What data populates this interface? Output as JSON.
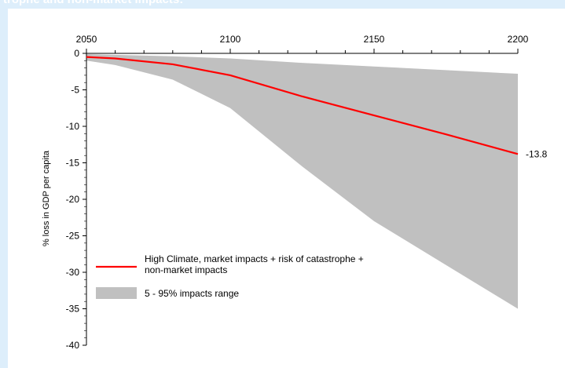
{
  "header": {
    "title": "trophe and non-market impacts:"
  },
  "chart_data": {
    "type": "area",
    "xlabel": "",
    "ylabel": "% loss in GDP per capita",
    "xlim": [
      2050,
      2200
    ],
    "ylim": [
      -40,
      0
    ],
    "x_ticks": [
      2050,
      2100,
      2150,
      2200
    ],
    "y_ticks": [
      0,
      -5,
      -10,
      -15,
      -20,
      -25,
      -30,
      -35,
      -40
    ],
    "x_axis_position": "top",
    "grid": false,
    "legend_placement": "bottom-left",
    "series": [
      {
        "name": "High Climate, market impacts + risk of catastrophe + non-market impacts",
        "type": "line",
        "color": "#ff0000",
        "x": [
          2050,
          2060,
          2080,
          2100,
          2125,
          2150,
          2175,
          2200
        ],
        "values": [
          -0.5,
          -0.7,
          -1.5,
          -3.0,
          -5.9,
          -8.5,
          -11.1,
          -13.8
        ]
      },
      {
        "name": "5 - 95% impacts range",
        "type": "band",
        "color": "#c0c0c0",
        "x": [
          2050,
          2060,
          2080,
          2100,
          2125,
          2150,
          2175,
          2200
        ],
        "upper": [
          -0.1,
          -0.2,
          -0.4,
          -0.7,
          -1.3,
          -1.8,
          -2.3,
          -2.8
        ],
        "lower": [
          -1.0,
          -1.6,
          -3.6,
          -7.5,
          -15.5,
          -23.0,
          -29.0,
          -35.0
        ]
      }
    ],
    "annotations": [
      {
        "x": 2200,
        "y": -13.8,
        "text": "-13.8"
      }
    ]
  }
}
